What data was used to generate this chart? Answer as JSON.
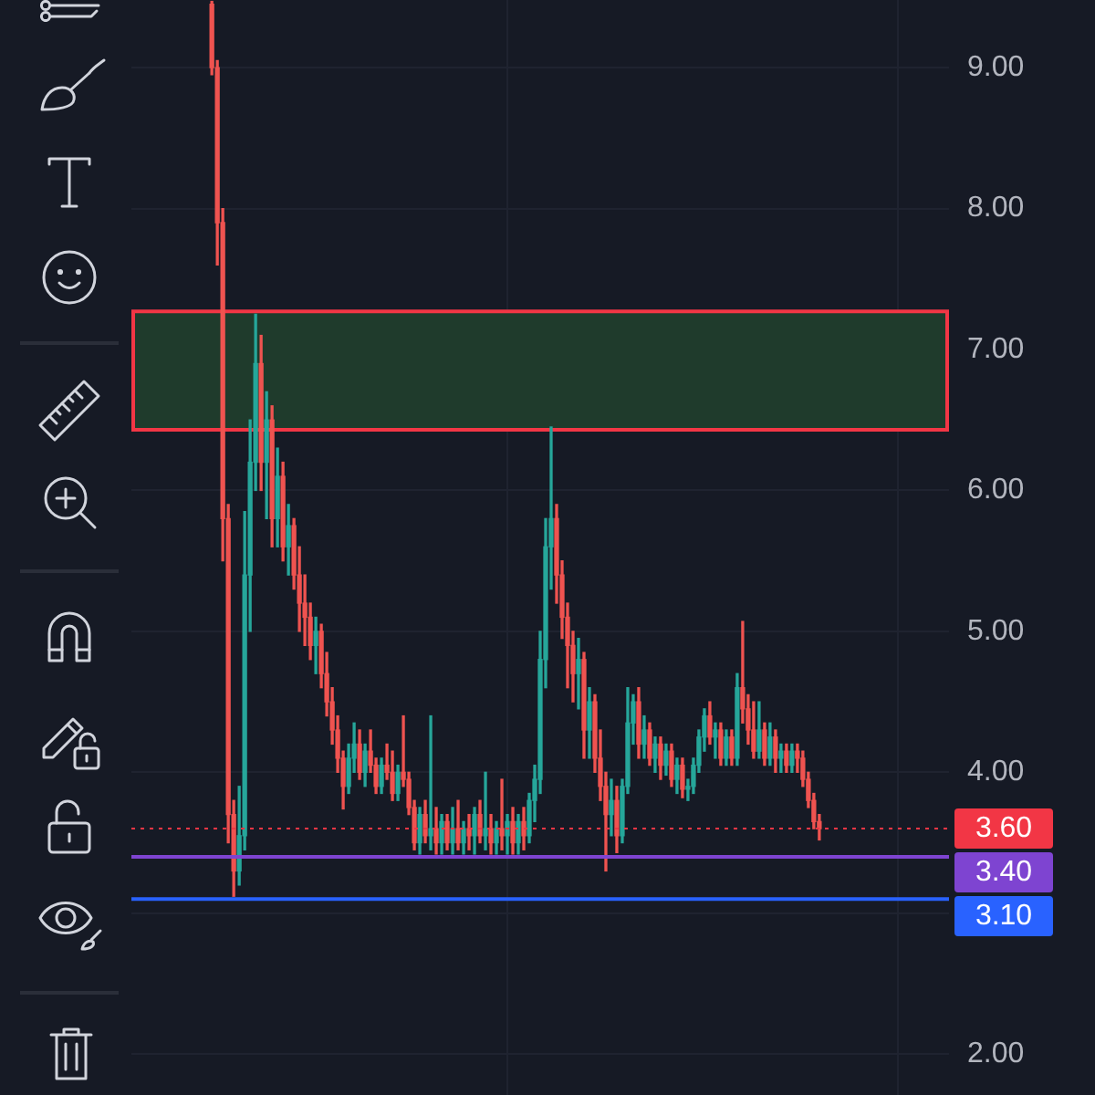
{
  "chart_data": {
    "type": "candlestick",
    "categories": [
      null,
      null,
      null,
      null,
      null,
      null,
      null,
      null,
      null,
      null,
      null,
      null,
      null,
      null,
      null,
      null,
      null,
      null,
      null,
      null,
      null,
      null,
      null,
      null,
      null,
      null,
      null,
      null,
      null,
      null,
      null,
      null,
      null,
      null,
      null,
      null,
      null,
      null,
      null,
      null,
      null,
      null,
      null,
      null,
      null,
      null,
      null,
      null,
      null,
      null,
      null,
      null,
      null,
      null,
      null,
      null,
      null,
      null,
      null,
      null,
      null,
      null,
      null,
      null,
      null,
      null,
      null,
      null,
      null,
      null,
      null,
      null,
      null,
      null,
      null,
      null,
      null,
      null,
      null,
      null,
      null,
      null,
      null,
      null,
      null,
      null,
      null,
      null,
      null,
      null,
      null,
      null,
      null,
      null,
      null,
      null,
      null,
      null,
      null,
      null,
      null,
      null,
      null,
      null,
      null,
      null,
      null,
      null,
      null,
      null,
      null,
      null
    ],
    "ohlc": [
      [
        9.45,
        9.47,
        8.95,
        9.0
      ],
      [
        9.0,
        9.05,
        7.6,
        7.9
      ],
      [
        7.9,
        8.0,
        5.5,
        5.8
      ],
      [
        5.8,
        5.9,
        3.5,
        3.7
      ],
      [
        3.7,
        3.8,
        3.12,
        3.3
      ],
      [
        3.3,
        3.9,
        3.2,
        3.55
      ],
      [
        3.55,
        5.85,
        3.45,
        5.4
      ],
      [
        5.4,
        6.5,
        5.0,
        6.2
      ],
      [
        6.2,
        7.25,
        6.0,
        6.9
      ],
      [
        6.9,
        7.1,
        6.0,
        6.2
      ],
      [
        6.2,
        6.7,
        5.8,
        6.5
      ],
      [
        6.5,
        6.6,
        5.6,
        5.8
      ],
      [
        5.8,
        6.3,
        5.6,
        6.1
      ],
      [
        6.1,
        6.2,
        5.5,
        5.6
      ],
      [
        5.6,
        5.9,
        5.4,
        5.75
      ],
      [
        5.75,
        5.8,
        5.3,
        5.4
      ],
      [
        5.4,
        5.6,
        5.0,
        5.2
      ],
      [
        5.2,
        5.4,
        4.9,
        5.1
      ],
      [
        5.1,
        5.2,
        4.8,
        4.9
      ],
      [
        4.9,
        5.1,
        4.7,
        5.0
      ],
      [
        5.0,
        5.05,
        4.6,
        4.7
      ],
      [
        4.7,
        4.85,
        4.4,
        4.5
      ],
      [
        4.5,
        4.6,
        4.2,
        4.3
      ],
      [
        4.3,
        4.4,
        4.0,
        4.1
      ],
      [
        4.1,
        4.15,
        3.74,
        3.9
      ],
      [
        3.9,
        4.2,
        3.85,
        4.1
      ],
      [
        4.1,
        4.35,
        4.0,
        4.2
      ],
      [
        4.2,
        4.3,
        3.95,
        4.0
      ],
      [
        4.0,
        4.2,
        3.9,
        4.15
      ],
      [
        4.15,
        4.3,
        4.0,
        4.05
      ],
      [
        4.05,
        4.1,
        3.85,
        3.9
      ],
      [
        3.9,
        4.1,
        3.85,
        4.05
      ],
      [
        4.05,
        4.2,
        3.95,
        4.0
      ],
      [
        4.0,
        4.15,
        3.8,
        3.85
      ],
      [
        3.85,
        4.05,
        3.8,
        4.0
      ],
      [
        4.0,
        4.4,
        3.9,
        3.95
      ],
      [
        3.95,
        4.0,
        3.7,
        3.75
      ],
      [
        3.75,
        3.8,
        3.45,
        3.5
      ],
      [
        3.5,
        3.75,
        3.42,
        3.7
      ],
      [
        3.7,
        3.8,
        3.5,
        3.55
      ],
      [
        3.55,
        4.4,
        3.45,
        3.6
      ],
      [
        3.6,
        3.75,
        3.42,
        3.5
      ],
      [
        3.5,
        3.7,
        3.42,
        3.65
      ],
      [
        3.65,
        3.7,
        3.45,
        3.5
      ],
      [
        3.5,
        3.75,
        3.42,
        3.6
      ],
      [
        3.6,
        3.8,
        3.45,
        3.5
      ],
      [
        3.5,
        3.65,
        3.42,
        3.6
      ],
      [
        3.6,
        3.7,
        3.45,
        3.55
      ],
      [
        3.55,
        3.75,
        3.42,
        3.7
      ],
      [
        3.7,
        3.8,
        3.5,
        3.55
      ],
      [
        3.55,
        4.0,
        3.45,
        3.6
      ],
      [
        3.6,
        3.7,
        3.42,
        3.5
      ],
      [
        3.5,
        3.65,
        3.42,
        3.6
      ],
      [
        3.6,
        3.95,
        3.45,
        3.55
      ],
      [
        3.55,
        3.7,
        3.42,
        3.65
      ],
      [
        3.65,
        3.75,
        3.42,
        3.5
      ],
      [
        3.5,
        3.7,
        3.42,
        3.65
      ],
      [
        3.65,
        3.75,
        3.45,
        3.55
      ],
      [
        3.55,
        3.85,
        3.5,
        3.8
      ],
      [
        3.8,
        4.05,
        3.65,
        3.95
      ],
      [
        3.95,
        5.0,
        3.85,
        4.8
      ],
      [
        4.8,
        5.8,
        4.6,
        5.6
      ],
      [
        5.6,
        6.45,
        5.3,
        5.8
      ],
      [
        5.8,
        5.9,
        5.2,
        5.4
      ],
      [
        5.4,
        5.5,
        4.95,
        5.1
      ],
      [
        5.1,
        5.2,
        4.6,
        4.9
      ],
      [
        4.9,
        5.0,
        4.5,
        4.7
      ],
      [
        4.7,
        4.95,
        4.45,
        4.8
      ],
      [
        4.8,
        4.85,
        4.1,
        4.3
      ],
      [
        4.3,
        4.6,
        4.1,
        4.5
      ],
      [
        4.5,
        4.55,
        4.0,
        4.1
      ],
      [
        4.1,
        4.3,
        3.8,
        3.9
      ],
      [
        3.9,
        4.0,
        3.3,
        3.7
      ],
      [
        3.7,
        3.95,
        3.55,
        3.8
      ],
      [
        3.8,
        3.9,
        3.43,
        3.55
      ],
      [
        3.55,
        3.95,
        3.5,
        3.9
      ],
      [
        3.9,
        4.6,
        3.85,
        4.35
      ],
      [
        4.35,
        4.55,
        4.2,
        4.5
      ],
      [
        4.5,
        4.6,
        4.1,
        4.2
      ],
      [
        4.2,
        4.4,
        4.1,
        4.3
      ],
      [
        4.3,
        4.35,
        4.05,
        4.1
      ],
      [
        4.1,
        4.25,
        4.0,
        4.2
      ],
      [
        4.2,
        4.25,
        3.95,
        4.05
      ],
      [
        4.05,
        4.2,
        3.98,
        4.15
      ],
      [
        4.15,
        4.2,
        3.9,
        3.95
      ],
      [
        3.95,
        4.1,
        3.85,
        4.05
      ],
      [
        4.05,
        4.1,
        3.82,
        3.88
      ],
      [
        3.88,
        3.95,
        3.8,
        3.9
      ],
      [
        3.9,
        4.1,
        3.85,
        4.05
      ],
      [
        4.05,
        4.3,
        4.0,
        4.25
      ],
      [
        4.25,
        4.45,
        4.15,
        4.4
      ],
      [
        4.4,
        4.5,
        4.2,
        4.25
      ],
      [
        4.25,
        4.35,
        4.1,
        4.3
      ],
      [
        4.3,
        4.35,
        4.05,
        4.1
      ],
      [
        4.1,
        4.3,
        4.05,
        4.25
      ],
      [
        4.25,
        4.3,
        4.05,
        4.1
      ],
      [
        4.1,
        4.7,
        4.05,
        4.6
      ],
      [
        4.6,
        5.07,
        4.35,
        4.45
      ],
      [
        4.45,
        4.55,
        4.2,
        4.3
      ],
      [
        4.3,
        4.5,
        4.1,
        4.15
      ],
      [
        4.15,
        4.5,
        4.1,
        4.3
      ],
      [
        4.3,
        4.35,
        4.05,
        4.1
      ],
      [
        4.1,
        4.35,
        4.05,
        4.25
      ],
      [
        4.25,
        4.3,
        4.0,
        4.1
      ],
      [
        4.1,
        4.2,
        4.0,
        4.15
      ],
      [
        4.15,
        4.2,
        4.0,
        4.05
      ],
      [
        4.05,
        4.2,
        4.0,
        4.15
      ],
      [
        4.15,
        4.2,
        4.0,
        4.1
      ],
      [
        4.1,
        4.15,
        3.9,
        3.95
      ],
      [
        3.95,
        4.0,
        3.75,
        3.8
      ],
      [
        3.8,
        3.85,
        3.6,
        3.65
      ],
      [
        3.65,
        3.7,
        3.52,
        3.6
      ]
    ],
    "colors": [
      "#ef5350",
      "#ef5350",
      "#ef5350",
      "#ef5350",
      "#ef5350",
      "#26a69a",
      "#26a69a",
      "#26a69a",
      "#26a69a",
      "#ef5350",
      "#26a69a",
      "#ef5350",
      "#26a69a",
      "#ef5350",
      "#26a69a",
      "#ef5350",
      "#ef5350",
      "#ef5350",
      "#ef5350",
      "#26a69a",
      "#ef5350",
      "#ef5350",
      "#ef5350",
      "#ef5350",
      "#ef5350",
      "#26a69a",
      "#26a69a",
      "#ef5350",
      "#26a69a",
      "#ef5350",
      "#ef5350",
      "#26a69a",
      "#ef5350",
      "#ef5350",
      "#26a69a",
      "#ef5350",
      "#ef5350",
      "#ef5350",
      "#26a69a",
      "#ef5350",
      "#26a69a",
      "#ef5350",
      "#26a69a",
      "#ef5350",
      "#26a69a",
      "#ef5350",
      "#26a69a",
      "#ef5350",
      "#26a69a",
      "#ef5350",
      "#26a69a",
      "#ef5350",
      "#26a69a",
      "#ef5350",
      "#26a69a",
      "#ef5350",
      "#26a69a",
      "#ef5350",
      "#26a69a",
      "#26a69a",
      "#26a69a",
      "#26a69a",
      "#26a69a",
      "#ef5350",
      "#ef5350",
      "#ef5350",
      "#ef5350",
      "#26a69a",
      "#ef5350",
      "#26a69a",
      "#ef5350",
      "#ef5350",
      "#ef5350",
      "#26a69a",
      "#ef5350",
      "#26a69a",
      "#26a69a",
      "#26a69a",
      "#ef5350",
      "#26a69a",
      "#ef5350",
      "#26a69a",
      "#ef5350",
      "#26a69a",
      "#ef5350",
      "#26a69a",
      "#ef5350",
      "#26a69a",
      "#26a69a",
      "#26a69a",
      "#26a69a",
      "#ef5350",
      "#26a69a",
      "#ef5350",
      "#26a69a",
      "#ef5350",
      "#26a69a",
      "#ef5350",
      "#ef5350",
      "#ef5350",
      "#26a69a",
      "#ef5350",
      "#26a69a",
      "#ef5350",
      "#26a69a",
      "#ef5350",
      "#26a69a",
      "#ef5350",
      "#ef5350",
      "#ef5350",
      "#ef5350",
      "#ef5350"
    ],
    "ylim": [
      1.71,
      9.48
    ],
    "yticks": [
      {
        "value": 2,
        "label": "2.00"
      },
      {
        "value": 3,
        "label": null
      },
      {
        "value": 4,
        "label": "4.00"
      },
      {
        "value": 5,
        "label": "5.00"
      },
      {
        "value": 6,
        "label": "6.00"
      },
      {
        "value": 7,
        "label": "7.00"
      },
      {
        "value": 8,
        "label": "8.00"
      },
      {
        "value": 9,
        "label": "9.00"
      }
    ],
    "grid": true,
    "tick_labels": "y",
    "bands": [
      {
        "axis": "y",
        "from": 6.43,
        "to": 7.27,
        "color": "#1f3b2c"
      }
    ],
    "ref_lines": [
      {
        "axis": "y",
        "value": 3.6,
        "label": "3.60",
        "color": "#f23645",
        "line_style": "dotted"
      },
      {
        "axis": "y",
        "value": 3.4,
        "label": "3.40",
        "color": "#7e44d1",
        "line_style": "solid"
      },
      {
        "axis": "y",
        "value": 3.1,
        "label": "3.10",
        "color": "#2962ff",
        "line_style": "solid"
      }
    ]
  }
}
